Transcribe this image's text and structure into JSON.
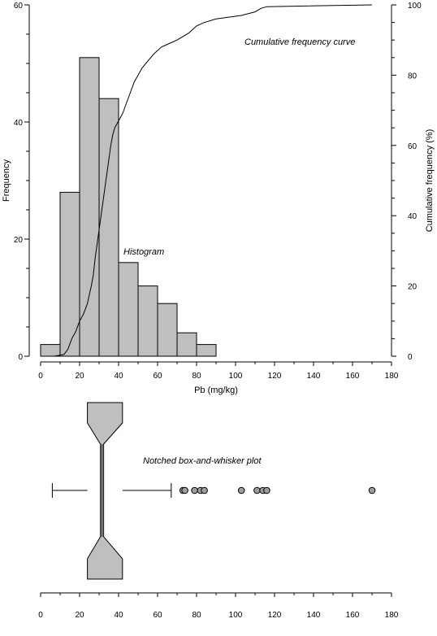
{
  "chart_data": [
    {
      "type": "bar",
      "subtype": "histogram",
      "xlabel": "Pb (mg/kg)",
      "ylabel": "Frequency",
      "y2label": "Cumulative frequency (%)",
      "xlim": [
        0,
        180
      ],
      "ylim": [
        0,
        60
      ],
      "y2lim": [
        0,
        100
      ],
      "x_ticks": [
        "0",
        "20",
        "40",
        "60",
        "80",
        "100",
        "120",
        "140",
        "160",
        "180"
      ],
      "y_ticks": [
        "0",
        "20",
        "40",
        "60"
      ],
      "y2_ticks": [
        "0",
        "20",
        "40",
        "60",
        "80",
        "100"
      ],
      "bins": [
        {
          "x0": 0,
          "x1": 10,
          "value": 2
        },
        {
          "x0": 10,
          "x1": 20,
          "value": 28
        },
        {
          "x0": 20,
          "x1": 30,
          "value": 51
        },
        {
          "x0": 30,
          "x1": 40,
          "value": 44
        },
        {
          "x0": 40,
          "x1": 50,
          "value": 16
        },
        {
          "x0": 50,
          "x1": 60,
          "value": 12
        },
        {
          "x0": 60,
          "x1": 70,
          "value": 9
        },
        {
          "x0": 70,
          "x1": 80,
          "value": 4
        },
        {
          "x0": 80,
          "x1": 90,
          "value": 2
        }
      ],
      "cumulative_curve": {
        "x": [
          7,
          12,
          14,
          16,
          18,
          20,
          22,
          24,
          26,
          27,
          28,
          29,
          30,
          31,
          32,
          33,
          34,
          35,
          36,
          37,
          38,
          40,
          42,
          44,
          46,
          48,
          50,
          52,
          55,
          58,
          62,
          66,
          70,
          73,
          76,
          80,
          84,
          90,
          103,
          110,
          113,
          116,
          170
        ],
        "y": [
          0,
          0.5,
          2,
          5,
          7,
          10,
          12,
          15,
          20,
          23,
          28,
          32,
          36,
          40,
          44,
          48,
          52,
          56,
          60,
          63,
          65,
          67,
          69,
          72,
          75,
          78,
          80,
          82,
          84,
          86,
          88,
          89,
          90,
          91,
          92,
          94,
          95,
          96,
          97,
          98,
          99,
          99.5,
          100
        ]
      },
      "annotations": {
        "histogram": "Histogram",
        "cumulative": "Cumulative frequency curve"
      },
      "colors": {
        "bar_fill": "#bfbfbf",
        "edge": "#000000"
      }
    },
    {
      "type": "box",
      "subtype": "notched box-and-whisker",
      "xlim": [
        0,
        180
      ],
      "x_ticks": [
        "0",
        "20",
        "40",
        "60",
        "80",
        "100",
        "120",
        "140",
        "160",
        "180"
      ],
      "whisker_low": 6,
      "q1": 24,
      "notch_low": 28.5,
      "median": 31.5,
      "notch_high": 34.5,
      "q3": 42,
      "whisker_high": 67,
      "outliers": [
        73,
        74,
        79,
        82,
        84,
        103,
        111,
        114,
        116,
        170
      ],
      "annotation": "Notched box-and-whisker plot",
      "colors": {
        "box_fill": "#bfbfbf",
        "outlier_fill": "#9e9e9e"
      }
    }
  ]
}
